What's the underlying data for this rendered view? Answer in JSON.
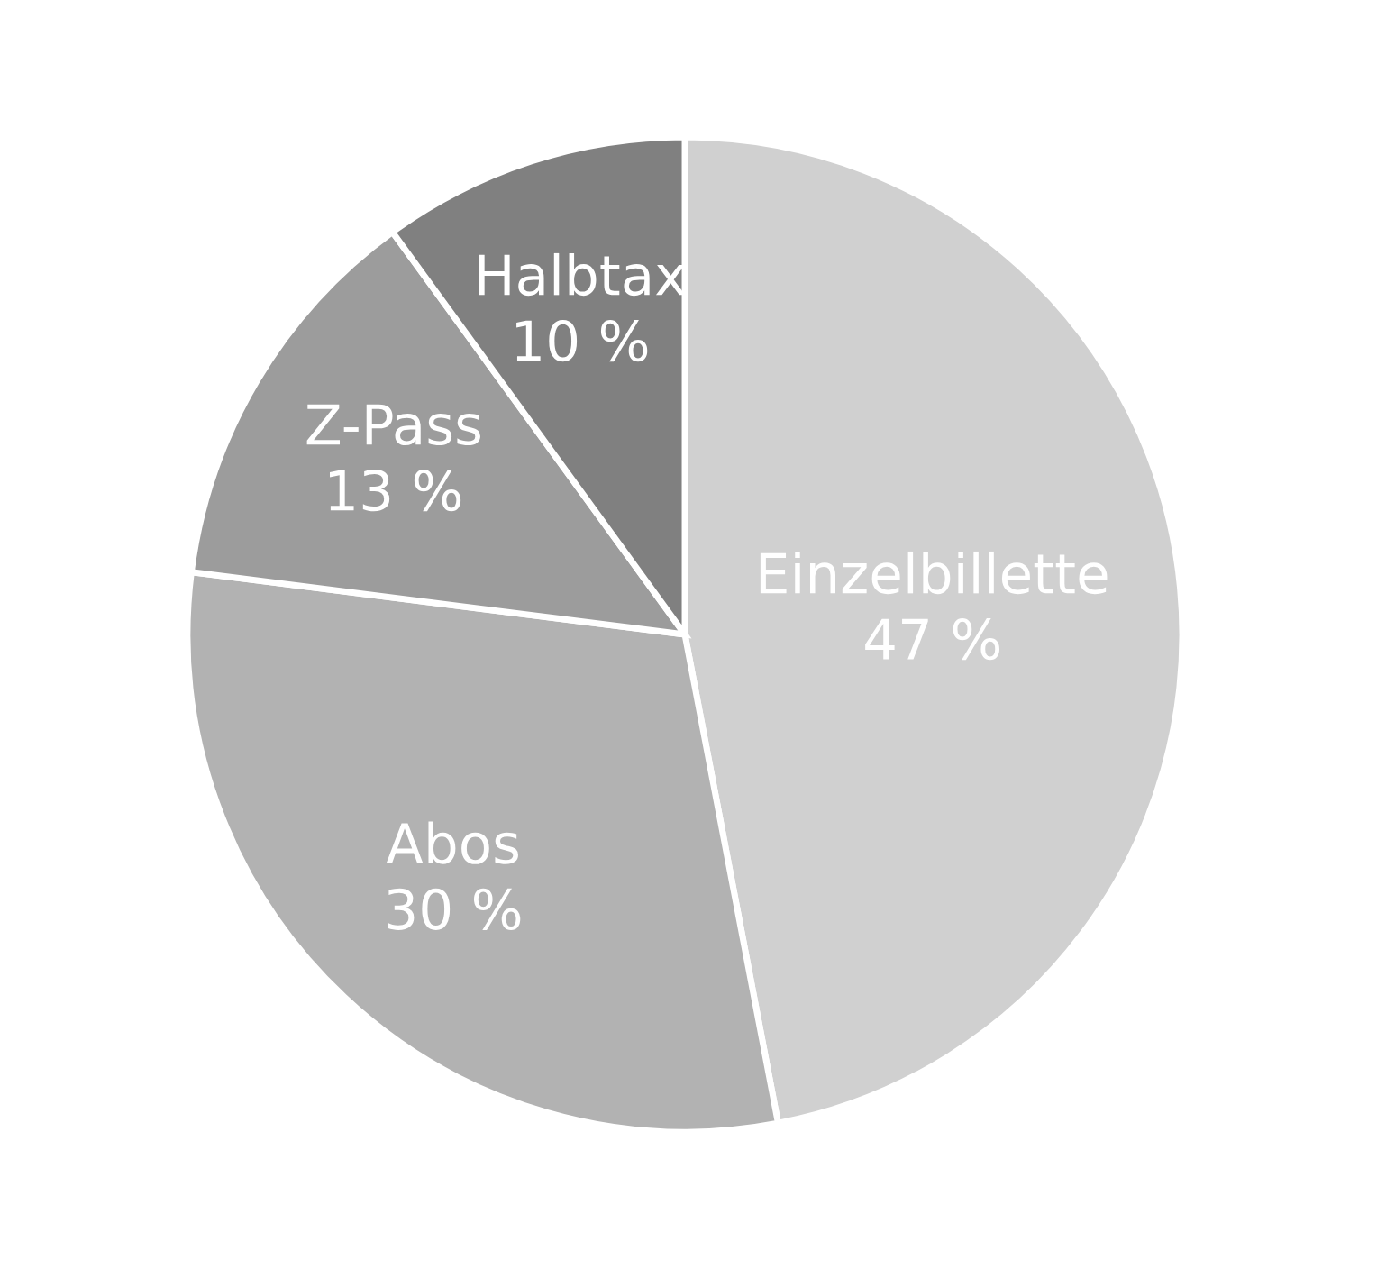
{
  "chart_data": {
    "type": "pie",
    "categories": [
      "Einzelbillette",
      "Abos",
      "Z-Pass",
      "Halbtax"
    ],
    "values": [
      47,
      30,
      13,
      10
    ],
    "value_labels": [
      "47 %",
      "30 %",
      "13 %",
      "10 %"
    ],
    "colors": [
      "#d0d0d0",
      "#b2b2b2",
      "#9c9c9c",
      "#808080"
    ]
  }
}
